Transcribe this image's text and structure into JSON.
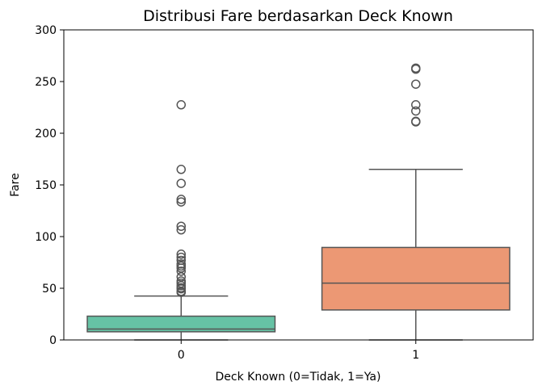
{
  "chart_data": {
    "type": "box",
    "title": "Distribusi Fare berdasarkan Deck Known",
    "xlabel": "Deck Known (0=Tidak, 1=Ya)",
    "ylabel": "Fare",
    "ylim": [
      0,
      300
    ],
    "yticks": [
      0,
      50,
      100,
      150,
      200,
      250,
      300
    ],
    "grid": false,
    "categories": [
      "0",
      "1"
    ],
    "boxes": [
      {
        "category": "0",
        "color": "#66c2a5",
        "whisker_low": 0,
        "q1": 7.9,
        "median": 10.5,
        "q3": 23.0,
        "whisker_high": 42.5,
        "outliers": [
          227.5,
          165,
          151.5,
          136,
          133.5,
          110,
          106.5,
          83,
          80,
          77,
          73.5,
          71.5,
          69.5,
          66.5,
          61,
          57,
          55,
          52.5,
          50.5,
          49.5,
          47,
          46.5,
          46
        ]
      },
      {
        "category": "1",
        "color": "#ec9874",
        "whisker_low": 0,
        "q1": 29,
        "median": 55,
        "q3": 89.5,
        "whisker_high": 165,
        "outliers": [
          263,
          262,
          247.5,
          227.5,
          221.5,
          211.5,
          211
        ]
      }
    ]
  }
}
